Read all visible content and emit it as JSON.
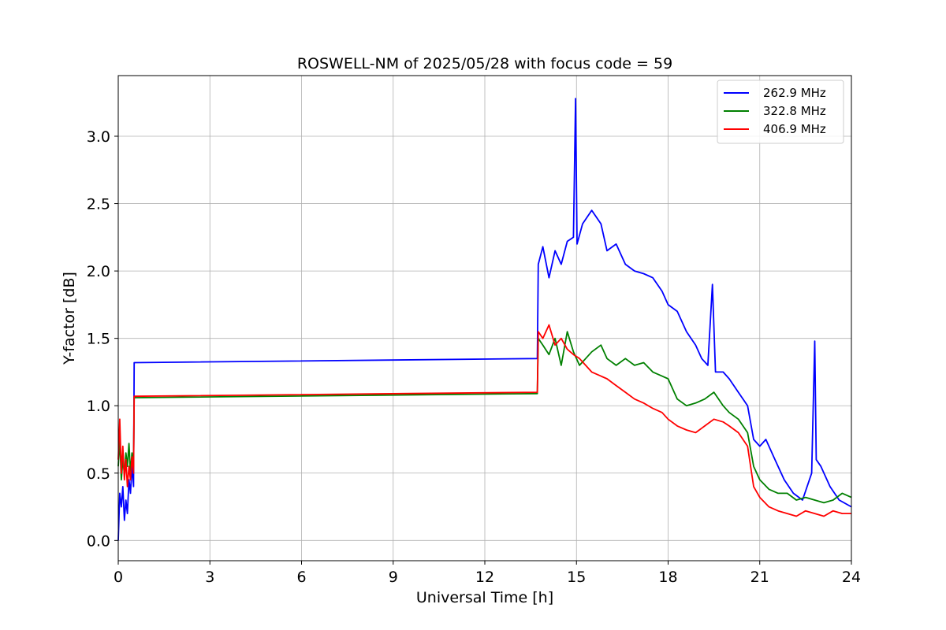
{
  "chart_data": {
    "type": "line",
    "title": "ROSWELL-NM of 2025/05/28 with focus code = 59",
    "xlabel": "Universal Time [h]",
    "ylabel": "Y-factor [dB]",
    "xlim": [
      0,
      24
    ],
    "ylim": [
      -0.15,
      3.45
    ],
    "xticks": [
      0,
      3,
      6,
      9,
      12,
      15,
      18,
      21,
      24
    ],
    "xtick_labels": [
      "0",
      "3",
      "6",
      "9",
      "12",
      "15",
      "18",
      "21",
      "24"
    ],
    "yticks": [
      0.0,
      0.5,
      1.0,
      1.5,
      2.0,
      2.5,
      3.0
    ],
    "ytick_labels": [
      "0.0",
      "0.5",
      "1.0",
      "1.5",
      "2.0",
      "2.5",
      "3.0"
    ],
    "grid": true,
    "legend_position": "top-right",
    "series": [
      {
        "name": "262.9 MHz",
        "color": "#0000ff",
        "points": [
          [
            0.0,
            0.0
          ],
          [
            0.05,
            0.35
          ],
          [
            0.1,
            0.25
          ],
          [
            0.15,
            0.4
          ],
          [
            0.2,
            0.15
          ],
          [
            0.25,
            0.3
          ],
          [
            0.3,
            0.2
          ],
          [
            0.35,
            0.45
          ],
          [
            0.4,
            0.35
          ],
          [
            0.45,
            0.55
          ],
          [
            0.5,
            0.4
          ],
          [
            0.52,
            1.32
          ],
          [
            13.72,
            1.35
          ],
          [
            13.75,
            2.05
          ],
          [
            13.9,
            2.18
          ],
          [
            14.1,
            1.95
          ],
          [
            14.3,
            2.15
          ],
          [
            14.5,
            2.05
          ],
          [
            14.7,
            2.22
          ],
          [
            14.9,
            2.25
          ],
          [
            14.97,
            3.28
          ],
          [
            15.02,
            2.2
          ],
          [
            15.2,
            2.35
          ],
          [
            15.5,
            2.45
          ],
          [
            15.8,
            2.35
          ],
          [
            16.0,
            2.15
          ],
          [
            16.3,
            2.2
          ],
          [
            16.6,
            2.05
          ],
          [
            16.9,
            2.0
          ],
          [
            17.2,
            1.98
          ],
          [
            17.5,
            1.95
          ],
          [
            17.8,
            1.85
          ],
          [
            18.0,
            1.75
          ],
          [
            18.3,
            1.7
          ],
          [
            18.6,
            1.55
          ],
          [
            18.9,
            1.45
          ],
          [
            19.1,
            1.35
          ],
          [
            19.3,
            1.3
          ],
          [
            19.45,
            1.9
          ],
          [
            19.55,
            1.25
          ],
          [
            19.8,
            1.25
          ],
          [
            20.0,
            1.2
          ],
          [
            20.3,
            1.1
          ],
          [
            20.6,
            1.0
          ],
          [
            20.8,
            0.75
          ],
          [
            21.0,
            0.7
          ],
          [
            21.2,
            0.75
          ],
          [
            21.5,
            0.6
          ],
          [
            21.8,
            0.45
          ],
          [
            22.1,
            0.35
          ],
          [
            22.4,
            0.3
          ],
          [
            22.7,
            0.5
          ],
          [
            22.8,
            1.48
          ],
          [
            22.85,
            0.6
          ],
          [
            23.0,
            0.55
          ],
          [
            23.3,
            0.4
          ],
          [
            23.6,
            0.3
          ],
          [
            24.0,
            0.25
          ]
        ]
      },
      {
        "name": "322.8 MHz",
        "color": "#008000",
        "points": [
          [
            0.0,
            0.55
          ],
          [
            0.05,
            0.75
          ],
          [
            0.1,
            0.45
          ],
          [
            0.15,
            0.6
          ],
          [
            0.2,
            0.5
          ],
          [
            0.25,
            0.65
          ],
          [
            0.3,
            0.55
          ],
          [
            0.35,
            0.72
          ],
          [
            0.4,
            0.5
          ],
          [
            0.45,
            0.65
          ],
          [
            0.5,
            0.55
          ],
          [
            0.52,
            1.06
          ],
          [
            13.72,
            1.09
          ],
          [
            13.75,
            1.5
          ],
          [
            13.9,
            1.45
          ],
          [
            14.1,
            1.38
          ],
          [
            14.3,
            1.5
          ],
          [
            14.5,
            1.3
          ],
          [
            14.7,
            1.55
          ],
          [
            14.9,
            1.4
          ],
          [
            15.1,
            1.3
          ],
          [
            15.3,
            1.35
          ],
          [
            15.5,
            1.4
          ],
          [
            15.8,
            1.45
          ],
          [
            16.0,
            1.35
          ],
          [
            16.3,
            1.3
          ],
          [
            16.6,
            1.35
          ],
          [
            16.9,
            1.3
          ],
          [
            17.2,
            1.32
          ],
          [
            17.5,
            1.25
          ],
          [
            17.8,
            1.22
          ],
          [
            18.0,
            1.2
          ],
          [
            18.3,
            1.05
          ],
          [
            18.6,
            1.0
          ],
          [
            18.9,
            1.02
          ],
          [
            19.2,
            1.05
          ],
          [
            19.5,
            1.1
          ],
          [
            19.8,
            1.0
          ],
          [
            20.0,
            0.95
          ],
          [
            20.3,
            0.9
          ],
          [
            20.6,
            0.8
          ],
          [
            20.8,
            0.55
          ],
          [
            21.0,
            0.45
          ],
          [
            21.3,
            0.38
          ],
          [
            21.6,
            0.35
          ],
          [
            21.9,
            0.35
          ],
          [
            22.2,
            0.3
          ],
          [
            22.5,
            0.32
          ],
          [
            22.8,
            0.3
          ],
          [
            23.1,
            0.28
          ],
          [
            23.4,
            0.3
          ],
          [
            23.7,
            0.35
          ],
          [
            24.0,
            0.32
          ]
        ]
      },
      {
        "name": "406.9 MHz",
        "color": "#ff0000",
        "points": [
          [
            0.0,
            0.6
          ],
          [
            0.05,
            0.9
          ],
          [
            0.1,
            0.5
          ],
          [
            0.15,
            0.7
          ],
          [
            0.2,
            0.45
          ],
          [
            0.25,
            0.6
          ],
          [
            0.3,
            0.4
          ],
          [
            0.35,
            0.55
          ],
          [
            0.4,
            0.45
          ],
          [
            0.45,
            0.62
          ],
          [
            0.5,
            0.5
          ],
          [
            0.52,
            1.07
          ],
          [
            13.72,
            1.1
          ],
          [
            13.75,
            1.55
          ],
          [
            13.9,
            1.5
          ],
          [
            14.1,
            1.6
          ],
          [
            14.3,
            1.45
          ],
          [
            14.5,
            1.5
          ],
          [
            14.7,
            1.42
          ],
          [
            14.9,
            1.38
          ],
          [
            15.1,
            1.35
          ],
          [
            15.3,
            1.3
          ],
          [
            15.5,
            1.25
          ],
          [
            15.8,
            1.22
          ],
          [
            16.0,
            1.2
          ],
          [
            16.3,
            1.15
          ],
          [
            16.6,
            1.1
          ],
          [
            16.9,
            1.05
          ],
          [
            17.2,
            1.02
          ],
          [
            17.5,
            0.98
          ],
          [
            17.8,
            0.95
          ],
          [
            18.0,
            0.9
          ],
          [
            18.3,
            0.85
          ],
          [
            18.6,
            0.82
          ],
          [
            18.9,
            0.8
          ],
          [
            19.2,
            0.85
          ],
          [
            19.5,
            0.9
          ],
          [
            19.8,
            0.88
          ],
          [
            20.0,
            0.85
          ],
          [
            20.3,
            0.8
          ],
          [
            20.6,
            0.7
          ],
          [
            20.8,
            0.4
          ],
          [
            21.0,
            0.32
          ],
          [
            21.3,
            0.25
          ],
          [
            21.6,
            0.22
          ],
          [
            21.9,
            0.2
          ],
          [
            22.2,
            0.18
          ],
          [
            22.5,
            0.22
          ],
          [
            22.8,
            0.2
          ],
          [
            23.1,
            0.18
          ],
          [
            23.4,
            0.22
          ],
          [
            23.7,
            0.2
          ],
          [
            24.0,
            0.2
          ]
        ]
      }
    ]
  }
}
